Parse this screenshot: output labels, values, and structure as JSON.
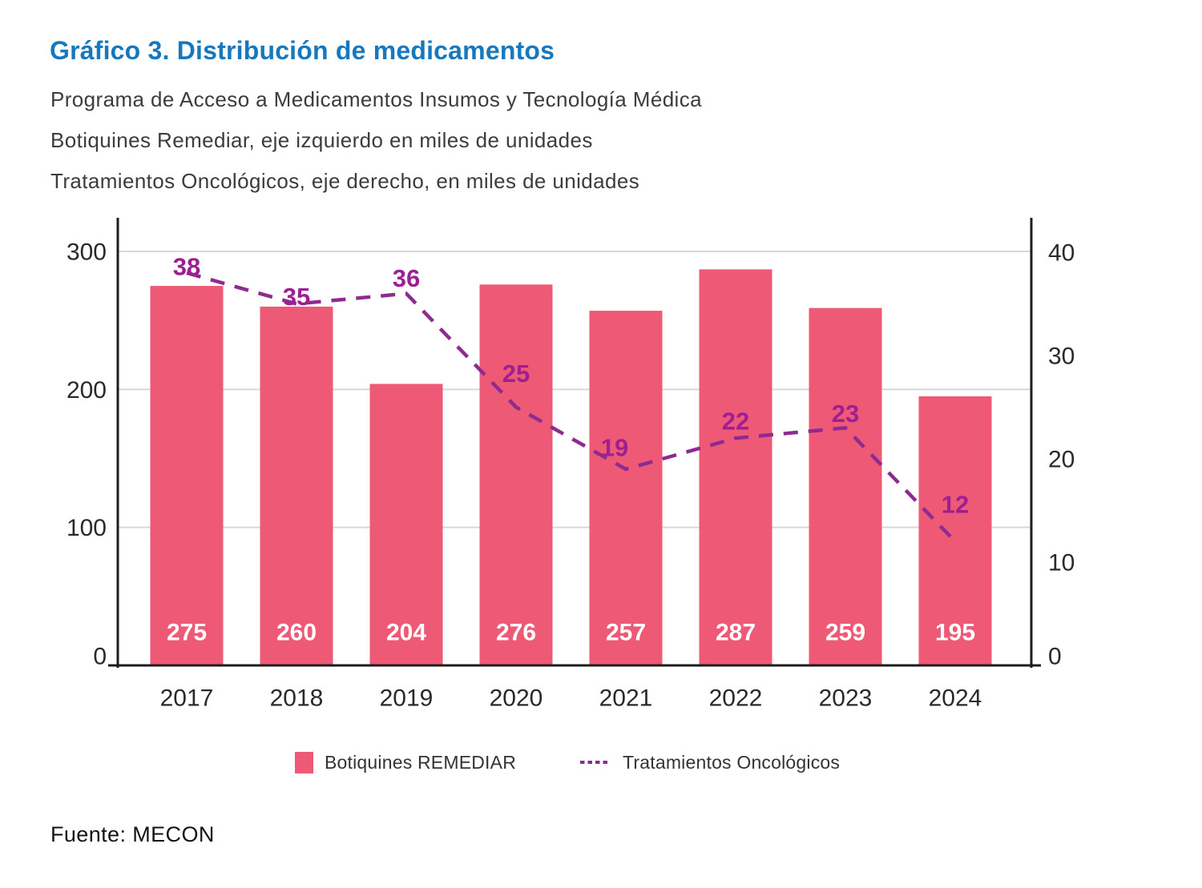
{
  "header": {
    "title": "Gráfico 3. Distribución de medicamentos",
    "subtitles": [
      "Programa de Acceso a Medicamentos Insumos y Tecnología Médica",
      "Botiquines Remediar, eje izquierdo en miles de unidades",
      "Tratamientos Oncológicos, eje derecho, en miles de unidades"
    ]
  },
  "chart_data": {
    "type": "combo-bar-line",
    "categories": [
      "2017",
      "2018",
      "2019",
      "2020",
      "2021",
      "2022",
      "2023",
      "2024"
    ],
    "series": [
      {
        "name": "Botiquines REMEDIAR",
        "type": "bar",
        "axis": "left",
        "values": [
          275,
          260,
          204,
          276,
          257,
          287,
          259,
          195
        ],
        "color": "#EE5A75",
        "value_label_color": "#FFFFFF"
      },
      {
        "name": "Tratamientos Oncológicos",
        "type": "line",
        "line_style": "dashed",
        "axis": "right",
        "values": [
          38,
          35,
          36,
          25,
          19,
          22,
          23,
          12
        ],
        "color": "#8E2B90",
        "value_label_color": "#9D1F92"
      }
    ],
    "left_axis": {
      "ticks": [
        0,
        100,
        200,
        300
      ],
      "max_tick": 300
    },
    "right_axis": {
      "ticks": [
        0,
        10,
        20,
        30,
        40
      ],
      "max_tick": 40
    },
    "grid": "horizontal"
  },
  "legend": {
    "items": [
      {
        "label": "Botiquines REMEDIAR",
        "swatch": "bar-square"
      },
      {
        "label": "Tratamientos Oncológicos",
        "swatch": "dashed-line"
      }
    ]
  },
  "footer": {
    "source": "Fuente: MECON"
  },
  "colors": {
    "title": "#1878BE",
    "subtitle": "#3C3C3C",
    "bar": "#EE5A75",
    "line": "#8E2B90",
    "point_label": "#9D1F92",
    "axis": "#1D1D1D",
    "grid": "#D8D8D8",
    "tick_label": "#2A2A2A"
  }
}
